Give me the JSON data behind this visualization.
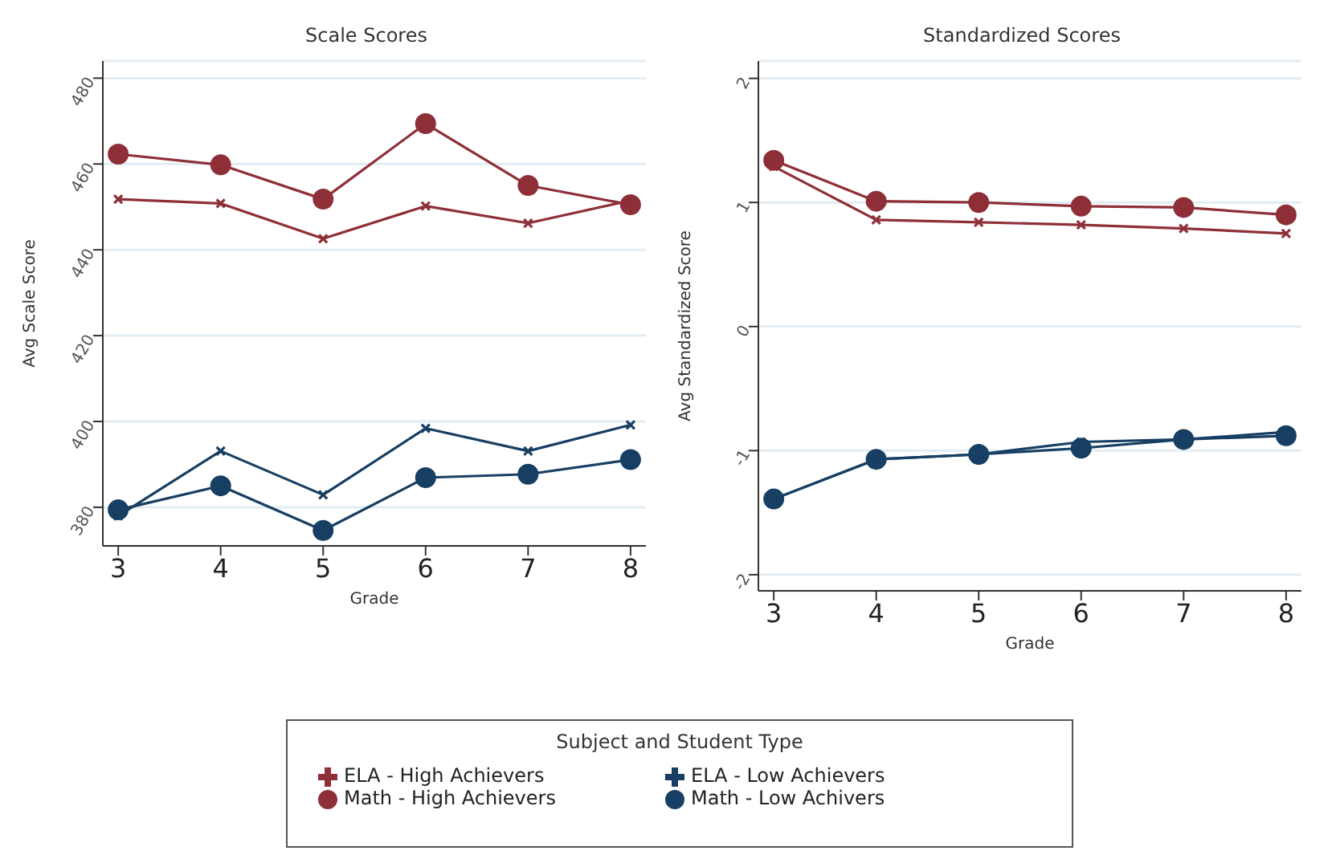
{
  "chart_data": [
    {
      "type": "line",
      "title": "Scale Scores",
      "xlabel": "Grade",
      "ylabel": "Avg Scale Score",
      "x": [
        3,
        4,
        5,
        6,
        7,
        8
      ],
      "xlim": [
        2.85,
        8.15
      ],
      "xticks": [
        3,
        4,
        5,
        6,
        7,
        8
      ],
      "ylim": [
        371,
        484
      ],
      "yticks": [
        380,
        400,
        420,
        440,
        460,
        480
      ],
      "grid": "y",
      "legend": "bottom",
      "legend_title": "Subject and Student Type",
      "series": [
        {
          "name": "Math - High Achievers",
          "color": "#8e2f38",
          "marker": "circle",
          "values": [
            462.3,
            459.8,
            451.8,
            469.4,
            455,
            450.5
          ]
        },
        {
          "name": "ELA - High Achievers",
          "color": "#8e2f38",
          "marker": "cross",
          "values": [
            451.8,
            450.8,
            442.6,
            450.2,
            446.2,
            451.5
          ]
        },
        {
          "name": "Math - Low Achivers",
          "color": "#173f63",
          "marker": "circle",
          "values": [
            379.4,
            385,
            374.6,
            386.9,
            387.7,
            391.1
          ]
        },
        {
          "name": "ELA - Low Achievers",
          "color": "#173f63",
          "marker": "cross",
          "values": [
            378,
            393.1,
            382.9,
            398.4,
            393.1,
            399.2
          ]
        }
      ]
    },
    {
      "type": "line",
      "title": "Standardized Scores",
      "xlabel": "Grade",
      "ylabel": "Avg Standardized Score",
      "x": [
        3,
        4,
        5,
        6,
        7,
        8
      ],
      "xlim": [
        2.85,
        8.15
      ],
      "xticks": [
        3,
        4,
        5,
        6,
        7,
        8
      ],
      "ylim": [
        -2.13,
        2.14
      ],
      "yticks": [
        -2,
        -1,
        0,
        1,
        2
      ],
      "grid": "y",
      "series": [
        {
          "color": "#8e2f38",
          "marker": "circle",
          "values": [
            1.34,
            1.01,
            1.0,
            0.97,
            0.96,
            0.9
          ]
        },
        {
          "color": "#8e2f38",
          "marker": "cross",
          "values": [
            1.29,
            0.86,
            0.84,
            0.82,
            0.79,
            0.75
          ]
        },
        {
          "color": "#173f63",
          "marker": "circle",
          "values": [
            -1.39,
            -1.07,
            -1.03,
            -0.98,
            -0.91,
            -0.88
          ]
        },
        {
          "color": "#173f63",
          "marker": "cross",
          "values": [
            -1.39,
            -1.07,
            -1.03,
            -0.93,
            -0.91,
            -0.85
          ]
        }
      ]
    }
  ]
}
